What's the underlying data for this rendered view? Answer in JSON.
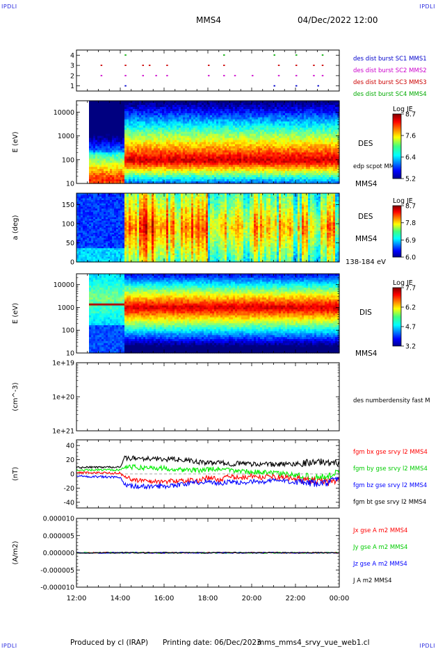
{
  "header": {
    "corner_tl": "IPDLI",
    "corner_tr": "IPDLI",
    "corner_bl": "IPDLI",
    "corner_br": "IPDLI",
    "spacecraft": "MMS4",
    "datetime": "04/Dec/2022 12:00"
  },
  "footer": {
    "produced_by": "Produced by cl (IRAP)",
    "printing_date": "Printing date: 06/Dec/2023",
    "filename": "mms_mms4_srvy_vue_web1.cl"
  },
  "colors": {
    "mms1": "#0000cc",
    "mms2": "#cc00cc",
    "mms3": "#cc0000",
    "mms4": "#00aa00",
    "bx": "#ff0000",
    "by": "#00ee00",
    "bz": "#0000ff",
    "bt": "#000000",
    "corner": "#2a2adf"
  },
  "time_axis": {
    "tick_labels": [
      "12:00",
      "14:00",
      "16:00",
      "18:00",
      "20:00",
      "22:00",
      "00:00"
    ],
    "range_hours": [
      12,
      24
    ]
  },
  "chart_data": [
    {
      "type": "scatter",
      "panel": "burst availability",
      "yticks": [
        "1",
        "2",
        "3",
        "4"
      ],
      "ylim": [
        0.5,
        4.5
      ],
      "legend_placement": "right",
      "series": [
        {
          "name": "des dist burst SC1 MMS1",
          "level": 1,
          "color": "#0000cc",
          "x_hours": [
            14.2,
            21.0,
            22.0,
            23.0
          ]
        },
        {
          "name": "des dist burst SC2 MMS2",
          "level": 2,
          "color": "#cc00cc",
          "x_hours": [
            13.1,
            14.2,
            15.0,
            15.6,
            16.1,
            18.0,
            18.7,
            19.2,
            20.0,
            21.2,
            22.0,
            22.8,
            23.2
          ]
        },
        {
          "name": "des dist burst SC3 MMS3",
          "level": 3,
          "color": "#cc0000",
          "x_hours": [
            13.1,
            14.2,
            15.0,
            15.3,
            16.1,
            18.0,
            18.7,
            21.2,
            22.0,
            22.8,
            23.2
          ]
        },
        {
          "name": "des dist burst SC4 MMS4",
          "level": 4,
          "color": "#00aa00",
          "x_hours": [
            14.2,
            18.7,
            21.0,
            22.0,
            23.2
          ]
        }
      ]
    },
    {
      "type": "heatmap",
      "panel": "electron energy spectrogram",
      "ylabel": "E (eV)",
      "yscale": "log",
      "ylim": [
        10,
        30000
      ],
      "yticks": [
        "10",
        "100",
        "1000",
        "10000"
      ],
      "instrument": "DES",
      "spacecraft": "MMS4",
      "overlay_label": "edp scpot MMS4",
      "colorbar": {
        "label": "Log JE",
        "ticks": [
          "8.7",
          "7.6",
          "6.4",
          "5.2"
        ]
      },
      "summary": {
        "data_start_hours": 12.6,
        "boundary_hours": 14.2,
        "peak_energy_before_eV": 15,
        "peak_energy_after_eV": 90
      }
    },
    {
      "type": "heatmap",
      "panel": "electron pitch angle",
      "ylabel": "a (deg)",
      "ylim": [
        0,
        180
      ],
      "yticks": [
        "0",
        "50",
        "100",
        "150"
      ],
      "instrument": "DES",
      "spacecraft": "MMS4",
      "energy_range_label": "138-184 eV",
      "colorbar": {
        "label": "Log JE",
        "ticks": [
          "8.7",
          "7.8",
          "6.9",
          "6.0"
        ]
      }
    },
    {
      "type": "heatmap",
      "panel": "ion energy spectrogram",
      "ylabel": "E (eV)",
      "yscale": "log",
      "ylim": [
        10,
        30000
      ],
      "yticks": [
        "10",
        "100",
        "1000",
        "10000"
      ],
      "instrument": "DIS",
      "spacecraft": "MMS4",
      "colorbar": {
        "label": "Log JE",
        "ticks": [
          "7.7",
          "6.2",
          "4.7",
          "3.2"
        ]
      },
      "summary": {
        "beam_energy_before_eV": 1300,
        "peak_energy_after_eV": 1000
      }
    },
    {
      "type": "line",
      "panel": "density",
      "ylabel": "(cm^-3)",
      "yscale": "log",
      "ylim": [
        1e+19,
        1e+21
      ],
      "yticks": [
        "1e+19",
        "1e+20",
        "1e+21"
      ],
      "series": [
        {
          "name": "des numberdensity fast M",
          "values": []
        }
      ]
    },
    {
      "type": "line",
      "panel": "magnetic field",
      "ylabel": "(nT)",
      "ylim": [
        -48,
        48
      ],
      "yticks": [
        "40",
        "20",
        "0",
        "-20",
        "-40"
      ],
      "series": [
        {
          "name": "fgm bx gse srvy l2 MMS4",
          "color": "#ff0000",
          "x_hours": [
            12.0,
            14.0,
            14.2,
            15.0,
            16.0,
            16.8,
            17.5,
            18.0,
            18.5,
            19.0,
            19.5,
            20.0,
            20.5,
            21.0,
            21.5,
            22.0,
            22.5,
            23.0,
            23.5,
            24.0
          ],
          "values": [
            2,
            1,
            -5,
            -10,
            -11,
            -9,
            -10,
            -5,
            -8,
            -4,
            -6,
            -3,
            -5,
            -4,
            -5,
            -7,
            -9,
            -10,
            -12,
            -8
          ]
        },
        {
          "name": "fgm by gse srvy l2 MMS4",
          "color": "#00ee00",
          "x_hours": [
            12.0,
            14.0,
            14.2,
            15.0,
            16.0,
            16.8,
            17.5,
            18.0,
            18.5,
            19.0,
            19.5,
            20.0,
            20.5,
            21.0,
            21.5,
            22.0,
            22.5,
            23.0,
            23.5,
            24.0
          ],
          "values": [
            5,
            6,
            10,
            9,
            8,
            6,
            5,
            6,
            7,
            5,
            4,
            3,
            2,
            1,
            0,
            -2,
            -4,
            -5,
            -3,
            2
          ]
        },
        {
          "name": "fgm bz gse srvy l2 MMS4",
          "color": "#0000ff",
          "x_hours": [
            12.0,
            14.0,
            14.2,
            15.0,
            16.0,
            16.8,
            17.5,
            18.0,
            18.5,
            19.0,
            19.5,
            20.0,
            20.5,
            21.0,
            21.5,
            22.0,
            22.5,
            23.0,
            23.5,
            24.0
          ],
          "values": [
            -3,
            -5,
            -16,
            -18,
            -17,
            -15,
            -12,
            -10,
            -14,
            -11,
            -13,
            -10,
            -12,
            -9,
            -10,
            -11,
            -13,
            -14,
            -12,
            -6
          ]
        },
        {
          "name": "fgm bt gse srvy l2 MMS4",
          "color": "#000000",
          "x_hours": [
            12.0,
            14.0,
            14.2,
            15.0,
            16.0,
            16.8,
            17.5,
            18.0,
            18.5,
            19.0,
            19.5,
            20.0,
            20.5,
            21.0,
            21.5,
            22.0,
            22.5,
            23.0,
            23.5,
            24.0
          ],
          "values": [
            9,
            10,
            22,
            22,
            21,
            20,
            17,
            15,
            16,
            14,
            15,
            14,
            14,
            13,
            14,
            14,
            16,
            17,
            16,
            15
          ]
        }
      ]
    },
    {
      "type": "line",
      "panel": "current density",
      "ylabel": "(A/m2)",
      "ylim": [
        -1e-05,
        1e-05
      ],
      "yticks": [
        "0.000010",
        "0.000005",
        "0.000000",
        "-0.000005",
        "-0.000010"
      ],
      "series": [
        {
          "name": "Jx gse A m2 MMS4",
          "color": "#ff0000",
          "x_hours": [
            12,
            24
          ],
          "values": [
            0,
            0
          ]
        },
        {
          "name": "Jy gse A m2 MMS4",
          "color": "#00ee00",
          "x_hours": [
            12,
            24
          ],
          "values": [
            0,
            0
          ]
        },
        {
          "name": "Jz gse A m2 MMS4",
          "color": "#0000ff",
          "x_hours": [
            12,
            24
          ],
          "values": [
            0,
            0
          ]
        },
        {
          "name": "J A m2 MMS4",
          "color": "#000000",
          "x_hours": [
            12,
            24
          ],
          "values": [
            0,
            0
          ]
        }
      ]
    }
  ]
}
